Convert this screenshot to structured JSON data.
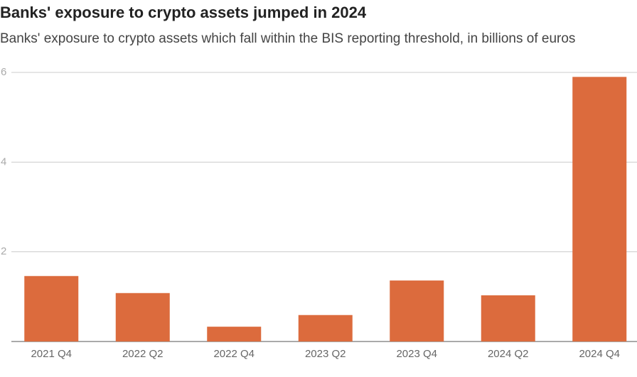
{
  "chart_data": {
    "type": "bar",
    "title": "Banks' exposure to crypto assets jumped in 2024",
    "subtitle": "Banks' exposure to crypto assets which fall within the BIS reporting threshold, in billions of euros",
    "categories": [
      "2021 Q4",
      "2022 Q2",
      "2022 Q4",
      "2023 Q2",
      "2023 Q4",
      "2024 Q2",
      "2024 Q4"
    ],
    "values": [
      1.46,
      1.08,
      0.33,
      0.59,
      1.36,
      1.03,
      5.9
    ],
    "color": "#dc6b3d",
    "ylim": [
      0,
      6
    ],
    "yticks": [
      2,
      4,
      6
    ],
    "grid": true
  }
}
